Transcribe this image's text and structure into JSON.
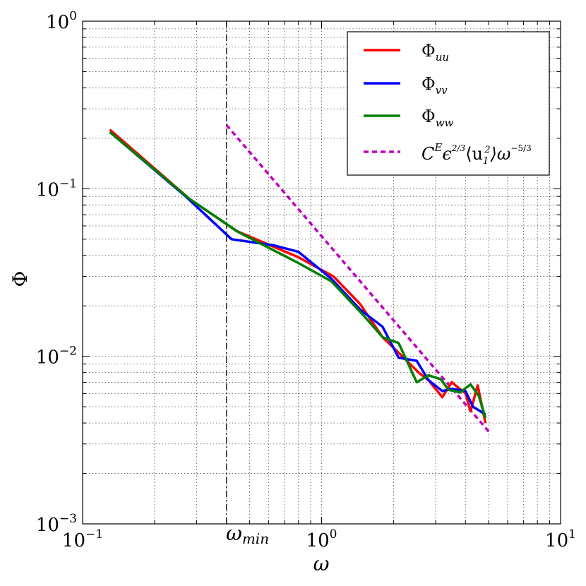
{
  "chart_data": {
    "type": "line",
    "xscale": "log",
    "yscale": "log",
    "xlim": [
      0.1,
      10
    ],
    "ylim": [
      0.001,
      1
    ],
    "xlabel": "ω",
    "ylabel": "Φ",
    "grid": true,
    "legend_position": "top-right",
    "x_tick_labels": [
      {
        "base": "10",
        "exp": "−1",
        "value": 0.1
      },
      {
        "base": "10",
        "exp": "0",
        "value": 1
      },
      {
        "base": "10",
        "exp": "1",
        "value": 10
      }
    ],
    "y_tick_labels": [
      {
        "base": "10",
        "exp": "−3",
        "value": 0.001
      },
      {
        "base": "10",
        "exp": "−2",
        "value": 0.01
      },
      {
        "base": "10",
        "exp": "−1",
        "value": 0.1
      },
      {
        "base": "10",
        "exp": "0",
        "value": 1
      }
    ],
    "vline": {
      "x": 0.4,
      "label": "ω",
      "label_sub": "min",
      "color": "#000000",
      "style": "dashdot"
    },
    "series": [
      {
        "name": "Φ_uu",
        "label_main": "Φ",
        "label_sub": "uu",
        "color": "#ff0000",
        "style": "solid",
        "x": [
          0.13,
          0.28,
          0.44,
          0.8,
          1.12,
          1.45,
          1.8,
          2.1,
          2.55,
          2.8,
          3.2,
          3.5,
          4.0,
          4.2,
          4.5,
          4.85
        ],
        "y": [
          0.225,
          0.087,
          0.056,
          0.039,
          0.03,
          0.0205,
          0.013,
          0.0105,
          0.008,
          0.0072,
          0.0057,
          0.007,
          0.006,
          0.0047,
          0.0067,
          0.004
        ]
      },
      {
        "name": "Φ_vv",
        "label_main": "Φ",
        "label_sub": "vv",
        "color": "#0000ff",
        "style": "solid",
        "x": [
          0.13,
          0.27,
          0.42,
          0.63,
          0.8,
          1.1,
          1.45,
          1.8,
          2.1,
          2.5,
          2.8,
          3.2,
          3.5,
          4.0,
          4.3,
          4.85
        ],
        "y": [
          0.218,
          0.09,
          0.05,
          0.046,
          0.042,
          0.029,
          0.019,
          0.015,
          0.0098,
          0.0094,
          0.0072,
          0.0062,
          0.0064,
          0.0062,
          0.005,
          0.0045
        ]
      },
      {
        "name": "Φ_ww",
        "label_main": "Φ",
        "label_sub": "ww",
        "color": "#007f00",
        "style": "solid",
        "x": [
          0.13,
          0.28,
          0.45,
          0.8,
          1.1,
          1.5,
          1.8,
          2.1,
          2.5,
          2.8,
          3.15,
          3.4,
          3.8,
          4.2,
          4.55,
          4.85
        ],
        "y": [
          0.218,
          0.087,
          0.055,
          0.036,
          0.028,
          0.0175,
          0.013,
          0.012,
          0.007,
          0.0077,
          0.0073,
          0.0063,
          0.0061,
          0.0068,
          0.0058,
          0.0043
        ]
      },
      {
        "name": "C^E ε^(2/3) ⟨u_1^2⟩ ω^(−5/3)",
        "color": "#bf00bf",
        "style": "dashed",
        "x": [
          0.4,
          5.0
        ],
        "y": [
          0.24,
          0.00356
        ]
      }
    ]
  },
  "legend": {
    "items": [
      {
        "main": "Φ",
        "sub": "uu"
      },
      {
        "main": "Φ",
        "sub": "vv"
      },
      {
        "main": "Φ",
        "sub": "ww"
      },
      {
        "main": "C",
        "sup1": "E",
        "eps": "ϵ",
        "frac23": "2/3",
        "u": "⟨u",
        "sub1": "1",
        "sup2": "2",
        "close": "⟩ω",
        "frac53": "−5/3"
      }
    ]
  }
}
